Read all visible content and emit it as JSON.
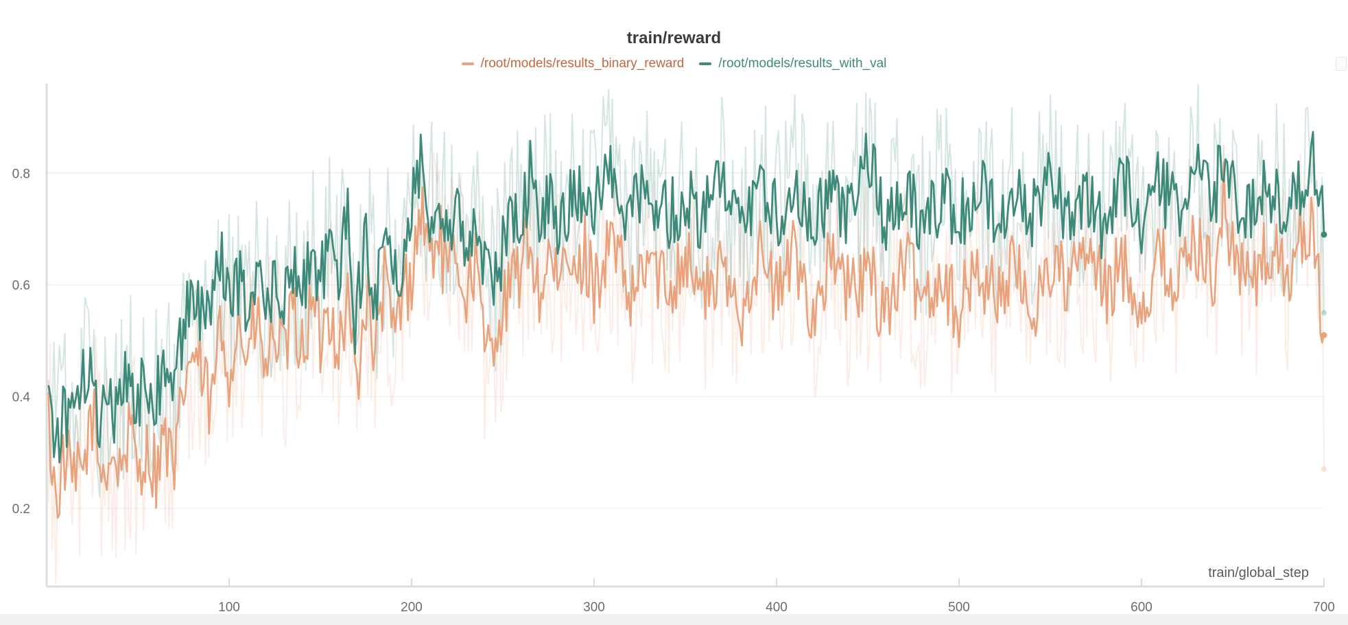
{
  "chart_data": {
    "type": "line",
    "title": "train/reward",
    "xlabel": "train/global_step",
    "ylabel": "",
    "xlim": [
      0,
      700
    ],
    "ylim": [
      0.06,
      0.96
    ],
    "xticks": [
      100,
      200,
      300,
      400,
      500,
      600,
      700
    ],
    "yticks": [
      0.2,
      0.4,
      0.6,
      0.8
    ],
    "grid": true,
    "legend_position": "top-center",
    "series": [
      {
        "name": "/root/models/results_binary_reward",
        "color": "#e9a27c",
        "label_color": "#c1663f",
        "smoothed_key_points": [
          [
            1,
            0.36
          ],
          [
            5,
            0.21
          ],
          [
            10,
            0.29
          ],
          [
            15,
            0.24
          ],
          [
            20,
            0.27
          ],
          [
            25,
            0.37
          ],
          [
            30,
            0.26
          ],
          [
            35,
            0.3
          ],
          [
            40,
            0.27
          ],
          [
            45,
            0.33
          ],
          [
            50,
            0.28
          ],
          [
            55,
            0.3
          ],
          [
            60,
            0.27
          ],
          [
            65,
            0.33
          ],
          [
            70,
            0.25
          ],
          [
            75,
            0.42
          ],
          [
            80,
            0.48
          ],
          [
            85,
            0.44
          ],
          [
            90,
            0.37
          ],
          [
            95,
            0.52
          ],
          [
            100,
            0.45
          ],
          [
            105,
            0.53
          ],
          [
            110,
            0.47
          ],
          [
            115,
            0.54
          ],
          [
            120,
            0.44
          ],
          [
            125,
            0.52
          ],
          [
            130,
            0.46
          ],
          [
            135,
            0.55
          ],
          [
            140,
            0.48
          ],
          [
            145,
            0.56
          ],
          [
            150,
            0.5
          ],
          [
            155,
            0.56
          ],
          [
            160,
            0.49
          ],
          [
            165,
            0.57
          ],
          [
            170,
            0.42
          ],
          [
            175,
            0.58
          ],
          [
            180,
            0.47
          ],
          [
            185,
            0.61
          ],
          [
            190,
            0.51
          ],
          [
            195,
            0.58
          ],
          [
            200,
            0.62
          ],
          [
            205,
            0.74
          ],
          [
            210,
            0.65
          ],
          [
            215,
            0.69
          ],
          [
            220,
            0.6
          ],
          [
            225,
            0.66
          ],
          [
            230,
            0.58
          ],
          [
            235,
            0.65
          ],
          [
            240,
            0.47
          ],
          [
            245,
            0.52
          ],
          [
            250,
            0.55
          ],
          [
            255,
            0.6
          ],
          [
            260,
            0.63
          ],
          [
            265,
            0.69
          ],
          [
            270,
            0.57
          ],
          [
            275,
            0.66
          ],
          [
            280,
            0.58
          ],
          [
            285,
            0.65
          ],
          [
            290,
            0.6
          ],
          [
            295,
            0.66
          ],
          [
            300,
            0.6
          ],
          [
            310,
            0.68
          ],
          [
            320,
            0.56
          ],
          [
            330,
            0.65
          ],
          [
            340,
            0.59
          ],
          [
            350,
            0.66
          ],
          [
            360,
            0.58
          ],
          [
            370,
            0.62
          ],
          [
            380,
            0.55
          ],
          [
            390,
            0.66
          ],
          [
            400,
            0.58
          ],
          [
            410,
            0.66
          ],
          [
            420,
            0.55
          ],
          [
            430,
            0.65
          ],
          [
            440,
            0.58
          ],
          [
            450,
            0.62
          ],
          [
            460,
            0.55
          ],
          [
            470,
            0.64
          ],
          [
            480,
            0.58
          ],
          [
            490,
            0.62
          ],
          [
            500,
            0.55
          ],
          [
            510,
            0.63
          ],
          [
            520,
            0.58
          ],
          [
            530,
            0.63
          ],
          [
            540,
            0.55
          ],
          [
            550,
            0.64
          ],
          [
            560,
            0.6
          ],
          [
            570,
            0.66
          ],
          [
            580,
            0.58
          ],
          [
            590,
            0.64
          ],
          [
            600,
            0.56
          ],
          [
            610,
            0.65
          ],
          [
            620,
            0.6
          ],
          [
            630,
            0.68
          ],
          [
            640,
            0.62
          ],
          [
            645,
            0.75
          ],
          [
            650,
            0.66
          ],
          [
            660,
            0.6
          ],
          [
            670,
            0.66
          ],
          [
            680,
            0.62
          ],
          [
            690,
            0.7
          ],
          [
            695,
            0.68
          ],
          [
            700,
            0.51
          ]
        ],
        "end_value": 0.51,
        "raw_end_value": 0.27
      },
      {
        "name": "/root/models/results_with_val",
        "color": "#3d8a7a",
        "label_color": "#3d8a7a",
        "smoothed_key_points": [
          [
            1,
            0.43
          ],
          [
            5,
            0.32
          ],
          [
            10,
            0.38
          ],
          [
            15,
            0.34
          ],
          [
            20,
            0.42
          ],
          [
            25,
            0.48
          ],
          [
            28,
            0.35
          ],
          [
            35,
            0.37
          ],
          [
            40,
            0.4
          ],
          [
            45,
            0.44
          ],
          [
            50,
            0.38
          ],
          [
            55,
            0.44
          ],
          [
            60,
            0.4
          ],
          [
            65,
            0.46
          ],
          [
            70,
            0.42
          ],
          [
            75,
            0.52
          ],
          [
            80,
            0.6
          ],
          [
            85,
            0.54
          ],
          [
            90,
            0.56
          ],
          [
            95,
            0.65
          ],
          [
            100,
            0.56
          ],
          [
            105,
            0.61
          ],
          [
            110,
            0.56
          ],
          [
            115,
            0.62
          ],
          [
            120,
            0.55
          ],
          [
            125,
            0.6
          ],
          [
            130,
            0.56
          ],
          [
            135,
            0.62
          ],
          [
            140,
            0.57
          ],
          [
            145,
            0.68
          ],
          [
            150,
            0.6
          ],
          [
            155,
            0.7
          ],
          [
            160,
            0.62
          ],
          [
            165,
            0.72
          ],
          [
            168,
            0.5
          ],
          [
            172,
            0.62
          ],
          [
            175,
            0.68
          ],
          [
            180,
            0.58
          ],
          [
            185,
            0.66
          ],
          [
            190,
            0.62
          ],
          [
            195,
            0.6
          ],
          [
            200,
            0.75
          ],
          [
            205,
            0.82
          ],
          [
            210,
            0.74
          ],
          [
            215,
            0.76
          ],
          [
            220,
            0.68
          ],
          [
            225,
            0.74
          ],
          [
            230,
            0.66
          ],
          [
            235,
            0.72
          ],
          [
            240,
            0.64
          ],
          [
            245,
            0.6
          ],
          [
            250,
            0.66
          ],
          [
            255,
            0.72
          ],
          [
            260,
            0.7
          ],
          [
            265,
            0.8
          ],
          [
            270,
            0.7
          ],
          [
            275,
            0.76
          ],
          [
            280,
            0.72
          ],
          [
            290,
            0.76
          ],
          [
            300,
            0.74
          ],
          [
            310,
            0.8
          ],
          [
            320,
            0.72
          ],
          [
            330,
            0.78
          ],
          [
            340,
            0.72
          ],
          [
            350,
            0.76
          ],
          [
            360,
            0.72
          ],
          [
            370,
            0.78
          ],
          [
            380,
            0.7
          ],
          [
            390,
            0.78
          ],
          [
            400,
            0.72
          ],
          [
            410,
            0.8
          ],
          [
            420,
            0.7
          ],
          [
            430,
            0.78
          ],
          [
            440,
            0.72
          ],
          [
            450,
            0.82
          ],
          [
            460,
            0.72
          ],
          [
            470,
            0.78
          ],
          [
            480,
            0.7
          ],
          [
            490,
            0.76
          ],
          [
            500,
            0.72
          ],
          [
            510,
            0.78
          ],
          [
            520,
            0.72
          ],
          [
            530,
            0.76
          ],
          [
            540,
            0.72
          ],
          [
            550,
            0.8
          ],
          [
            560,
            0.72
          ],
          [
            570,
            0.76
          ],
          [
            580,
            0.7
          ],
          [
            590,
            0.78
          ],
          [
            600,
            0.72
          ],
          [
            610,
            0.78
          ],
          [
            620,
            0.72
          ],
          [
            630,
            0.8
          ],
          [
            640,
            0.76
          ],
          [
            645,
            0.84
          ],
          [
            650,
            0.76
          ],
          [
            660,
            0.72
          ],
          [
            670,
            0.78
          ],
          [
            680,
            0.72
          ],
          [
            690,
            0.8
          ],
          [
            695,
            0.82
          ],
          [
            700,
            0.69
          ]
        ],
        "end_value": 0.69,
        "raw_end_value": 0.55
      }
    ]
  }
}
